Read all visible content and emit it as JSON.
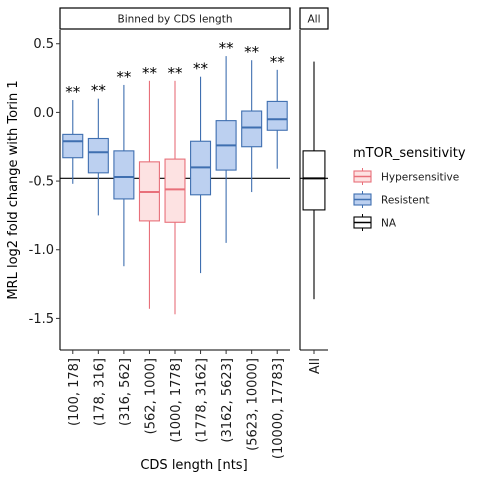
{
  "chart_data": {
    "type": "boxplot",
    "panels": [
      {
        "strip_label": "Binned by CDS length",
        "categories": [
          "(100, 178]",
          "(178, 316]",
          "(316, 562]",
          "(562, 1000]",
          "(1000, 1778]",
          "(1778, 3162]",
          "(3162, 5623]",
          "(5623, 10000]",
          "(10000, 17783]"
        ],
        "boxes": [
          {
            "whisker_low": -0.52,
            "q1": -0.33,
            "median": -0.21,
            "q3": -0.16,
            "whisker_high": 0.09,
            "group": "Resistent",
            "annotation": "**"
          },
          {
            "whisker_low": -0.75,
            "q1": -0.44,
            "median": -0.29,
            "q3": -0.19,
            "whisker_high": 0.1,
            "group": "Resistent",
            "annotation": "**"
          },
          {
            "whisker_low": -1.12,
            "q1": -0.63,
            "median": -0.47,
            "q3": -0.28,
            "whisker_high": 0.2,
            "group": "Resistent",
            "annotation": "**"
          },
          {
            "whisker_low": -1.43,
            "q1": -0.79,
            "median": -0.58,
            "q3": -0.36,
            "whisker_high": 0.23,
            "group": "Hypersensitive",
            "annotation": "**"
          },
          {
            "whisker_low": -1.47,
            "q1": -0.8,
            "median": -0.56,
            "q3": -0.34,
            "whisker_high": 0.23,
            "group": "Hypersensitive",
            "annotation": "**"
          },
          {
            "whisker_low": -1.17,
            "q1": -0.6,
            "median": -0.4,
            "q3": -0.21,
            "whisker_high": 0.26,
            "group": "Resistent",
            "annotation": "**"
          },
          {
            "whisker_low": -0.95,
            "q1": -0.42,
            "median": -0.24,
            "q3": -0.06,
            "whisker_high": 0.41,
            "group": "Resistent",
            "annotation": "**"
          },
          {
            "whisker_low": -0.58,
            "q1": -0.25,
            "median": -0.11,
            "q3": 0.01,
            "whisker_high": 0.38,
            "group": "Resistent",
            "annotation": "**"
          },
          {
            "whisker_low": -0.41,
            "q1": -0.13,
            "median": -0.05,
            "q3": 0.08,
            "whisker_high": 0.31,
            "group": "Resistent",
            "annotation": "**"
          }
        ],
        "reference_line": -0.48
      },
      {
        "strip_label": "All",
        "categories": [
          "All"
        ],
        "boxes": [
          {
            "whisker_low": -1.36,
            "q1": -0.71,
            "median": -0.48,
            "q3": -0.28,
            "whisker_high": 0.37,
            "group": "NA",
            "annotation": ""
          }
        ],
        "reference_line": -0.48
      }
    ],
    "xlabel": "CDS length [nts]",
    "ylabel": "MRL log2 fold change with Torin 1",
    "ylim": [
      -1.73,
      0.6
    ],
    "yticks": [
      0.5,
      0.0,
      -0.5,
      -1.0,
      -1.5
    ],
    "ytick_labels": [
      "0.5",
      "0.0",
      "-0.5",
      "-1.0",
      "-1.5"
    ],
    "legend": {
      "title": "mTOR_sensitivity",
      "position": "right",
      "entries": [
        {
          "label": "Hypersensitive",
          "group": "Hypersensitive"
        },
        {
          "label": "Resistent",
          "group": "Resistent"
        },
        {
          "label": "NA",
          "group": "NA"
        }
      ]
    },
    "colors": {
      "Hypersensitive": {
        "stroke": "#e8707a",
        "fill": "#fde2e2",
        "median": "#e8707a"
      },
      "Resistent": {
        "stroke": "#3f6fb0",
        "fill": "#bcd0f0",
        "median": "#3f6fb0"
      },
      "NA": {
        "stroke": "#000000",
        "fill": "#ffffff",
        "median": "#000000"
      }
    },
    "grid": false
  }
}
